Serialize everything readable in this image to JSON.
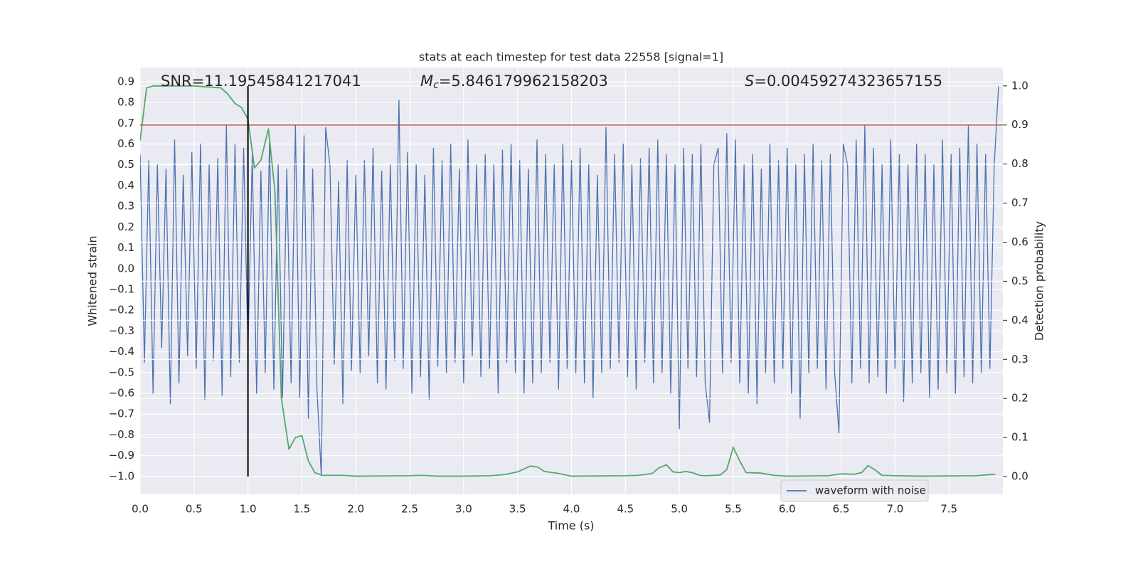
{
  "chart_data": {
    "type": "line",
    "title": "stats at each timestep for test data 22558 [signal=1]",
    "xlabel": "Time (s)",
    "ylabel": "Whitened strain",
    "y2label": "Detection probability",
    "grid": true,
    "legend_loc": "lower right",
    "background": "#eaeaf2",
    "xlim": [
      0,
      8
    ],
    "ylim": [
      -1.086,
      0.968
    ],
    "y2lim": [
      -0.0455,
      1.047
    ],
    "xticks": [
      {
        "value": 0,
        "label": "0.0"
      },
      0.5,
      {
        "value": 1,
        "label": "1.0"
      },
      1.5,
      {
        "value": 2,
        "label": "2.0"
      },
      2.5,
      {
        "value": 3,
        "label": "3.0"
      },
      3.5,
      {
        "value": 4,
        "label": "4.0"
      },
      4.5,
      {
        "value": 5,
        "label": "5.0"
      },
      5.5,
      {
        "value": 6,
        "label": "6.0"
      },
      6.5,
      {
        "value": 7,
        "label": "7.0"
      },
      7.5
    ],
    "yticks": [
      {
        "value": -1,
        "label": "−1.0"
      },
      {
        "value": -0.9,
        "label": "−0.9"
      },
      {
        "value": -0.8,
        "label": "−0.8"
      },
      {
        "value": -0.7,
        "label": "−0.7"
      },
      {
        "value": -0.6,
        "label": "−0.6"
      },
      {
        "value": -0.5,
        "label": "−0.5"
      },
      {
        "value": -0.4,
        "label": "−0.4"
      },
      {
        "value": -0.3,
        "label": "−0.3"
      },
      {
        "value": -0.2,
        "label": "−0.2"
      },
      {
        "value": -0.1,
        "label": "−0.1"
      },
      {
        "value": 0,
        "label": "0.0"
      },
      0.1,
      0.2,
      0.3,
      0.4,
      0.5,
      0.6,
      0.7,
      0.8,
      0.9
    ],
    "y2ticks": [
      {
        "value": 0,
        "label": "0.0"
      },
      0.1,
      0.2,
      0.3,
      0.4,
      0.5,
      0.6,
      0.7,
      0.8,
      0.9,
      {
        "value": 1,
        "label": "1.0"
      }
    ],
    "annotations": [
      {
        "text": "SNR=11.19545841217041"
      },
      {
        "symbol": "M",
        "subscript": "c",
        "text": "=5.846179962158203"
      },
      {
        "symbol": "S",
        "text": "=0.00459274323657155"
      }
    ],
    "hlines": [
      {
        "y": 0.9,
        "axis": "y2",
        "color": "#c44e52"
      }
    ],
    "vlines": [
      {
        "x": 1,
        "ymin": 0,
        "ymax": 1,
        "axis": "y2",
        "color": "#000000"
      }
    ],
    "series": [
      {
        "name": "waveform with noise",
        "color": "#4c72b0",
        "x": [
          0,
          0.04,
          0.08,
          0.12,
          0.16,
          0.2,
          0.24,
          0.28,
          0.32,
          0.36,
          0.4,
          0.44,
          0.48,
          0.52,
          0.56,
          0.6,
          0.64,
          0.68,
          0.72,
          0.76,
          0.8,
          0.84,
          0.88,
          0.92,
          0.96,
          1,
          1.04,
          1.08,
          1.12,
          1.16,
          1.2,
          1.24,
          1.28,
          1.32,
          1.36,
          1.4,
          1.44,
          1.48,
          1.52,
          1.56,
          1.6,
          1.64,
          1.68,
          1.72,
          1.76,
          1.8,
          1.84,
          1.88,
          1.92,
          1.96,
          2,
          2.04,
          2.08,
          2.12,
          2.16,
          2.2,
          2.24,
          2.28,
          2.32,
          2.36,
          2.4,
          2.44,
          2.48,
          2.52,
          2.56,
          2.6,
          2.64,
          2.68,
          2.72,
          2.76,
          2.8,
          2.84,
          2.88,
          2.92,
          2.96,
          3,
          3.04,
          3.08,
          3.12,
          3.16,
          3.2,
          3.24,
          3.28,
          3.32,
          3.36,
          3.4,
          3.44,
          3.48,
          3.52,
          3.56,
          3.6,
          3.64,
          3.68,
          3.72,
          3.76,
          3.8,
          3.84,
          3.88,
          3.92,
          3.96,
          4,
          4.04,
          4.08,
          4.12,
          4.16,
          4.2,
          4.24,
          4.28,
          4.32,
          4.36,
          4.4,
          4.44,
          4.48,
          4.52,
          4.56,
          4.6,
          4.64,
          4.68,
          4.72,
          4.76,
          4.8,
          4.84,
          4.88,
          4.92,
          4.96,
          5,
          5.04,
          5.08,
          5.12,
          5.16,
          5.2,
          5.24,
          5.28,
          5.32,
          5.36,
          5.4,
          5.44,
          5.48,
          5.52,
          5.56,
          5.6,
          5.64,
          5.68,
          5.72,
          5.76,
          5.8,
          5.84,
          5.88,
          5.92,
          5.96,
          6,
          6.04,
          6.08,
          6.12,
          6.16,
          6.2,
          6.24,
          6.28,
          6.32,
          6.36,
          6.4,
          6.44,
          6.48,
          6.52,
          6.56,
          6.6,
          6.64,
          6.68,
          6.72,
          6.76,
          6.8,
          6.84,
          6.88,
          6.92,
          6.96,
          7,
          7.04,
          7.08,
          7.12,
          7.16,
          7.2,
          7.24,
          7.28,
          7.32,
          7.36,
          7.4,
          7.44,
          7.48,
          7.52,
          7.56,
          7.6,
          7.64,
          7.68,
          7.72,
          7.76,
          7.8,
          7.84,
          7.88,
          7.92,
          7.96
        ],
        "values": [
          0.55,
          -0.45,
          0.52,
          -0.6,
          0.5,
          -0.38,
          0.48,
          -0.65,
          0.62,
          -0.55,
          0.45,
          -0.42,
          0.56,
          -0.48,
          0.6,
          -0.63,
          0.5,
          -0.44,
          0.53,
          -0.61,
          0.69,
          -0.52,
          0.6,
          -0.45,
          0.58,
          -0.39,
          0.55,
          -0.6,
          0.47,
          -0.5,
          0.62,
          -0.58,
          0.5,
          -0.62,
          0.48,
          -0.55,
          0.69,
          -0.62,
          0.64,
          -0.72,
          0.48,
          -0.58,
          -1.0,
          0.68,
          0.5,
          -0.46,
          0.42,
          -0.65,
          0.52,
          -0.49,
          0.45,
          -0.5,
          0.52,
          -0.42,
          0.58,
          -0.55,
          0.47,
          -0.58,
          0.5,
          -0.44,
          0.81,
          -0.48,
          0.56,
          -0.6,
          0.5,
          -0.52,
          0.45,
          -0.63,
          0.58,
          -0.47,
          0.52,
          -0.5,
          0.6,
          -0.45,
          0.48,
          -0.55,
          0.62,
          -0.42,
          0.5,
          -0.52,
          0.55,
          -0.48,
          0.5,
          -0.6,
          0.57,
          -0.45,
          0.6,
          -0.5,
          0.52,
          -0.6,
          0.48,
          -0.55,
          0.62,
          -0.5,
          0.55,
          -0.45,
          0.5,
          -0.58,
          0.6,
          -0.48,
          0.52,
          -0.5,
          0.58,
          -0.55,
          0.5,
          -0.62,
          0.45,
          -0.5,
          0.68,
          -0.48,
          0.55,
          -0.45,
          0.6,
          -0.52,
          0.5,
          -0.58,
          0.53,
          -0.45,
          0.58,
          -0.55,
          0.62,
          -0.5,
          0.55,
          -0.6,
          0.5,
          -0.77,
          0.58,
          -0.48,
          0.55,
          -0.52,
          0.6,
          -0.55,
          -0.74,
          0.5,
          0.58,
          -0.5,
          0.65,
          -0.45,
          0.62,
          -0.55,
          0.5,
          -0.6,
          0.55,
          -0.65,
          0.48,
          -0.5,
          0.6,
          -0.55,
          0.52,
          -0.48,
          0.58,
          -0.6,
          0.5,
          -0.72,
          0.55,
          -0.5,
          0.6,
          -0.48,
          0.52,
          -0.58,
          0.55,
          -0.5,
          -0.79,
          0.6,
          0.5,
          -0.55,
          0.62,
          -0.48,
          0.69,
          -0.55,
          0.58,
          -0.52,
          0.5,
          -0.6,
          0.62,
          -0.48,
          0.55,
          -0.64,
          0.5,
          -0.55,
          0.6,
          -0.5,
          0.55,
          -0.62,
          0.5,
          -0.58,
          0.62,
          -0.5,
          0.55,
          -0.6,
          0.58,
          -0.52,
          0.69,
          -0.55,
          0.6,
          -0.5,
          0.55,
          -0.48,
          0.5,
          0.88
        ]
      },
      {
        "color": "#55a868",
        "axis": "y2",
        "x": [
          0,
          0.06,
          0.12,
          0.25,
          0.5,
          0.75,
          0.81,
          0.88,
          0.94,
          1,
          1.06,
          1.12,
          1.19,
          1.25,
          1.31,
          1.38,
          1.44,
          1.5,
          1.56,
          1.62,
          1.69,
          1.75,
          1.88,
          2,
          2.5,
          2.62,
          2.75,
          3,
          3.25,
          3.38,
          3.5,
          3.62,
          3.69,
          3.75,
          3.88,
          4,
          4.5,
          4.62,
          4.75,
          4.81,
          4.88,
          4.94,
          5,
          5.06,
          5.12,
          5.19,
          5.25,
          5.38,
          5.44,
          5.5,
          5.56,
          5.62,
          5.75,
          5.88,
          6,
          6.38,
          6.5,
          6.62,
          6.69,
          6.75,
          6.81,
          6.88,
          7,
          7.25,
          7.75,
          7.93
        ],
        "values": [
          0.86,
          0.995,
          1.0,
          1.0,
          1.0,
          0.995,
          0.98,
          0.955,
          0.945,
          0.915,
          0.79,
          0.81,
          0.89,
          0.73,
          0.2,
          0.07,
          0.1,
          0.105,
          0.04,
          0.01,
          0.003,
          0.003,
          0.003,
          0.001,
          0.002,
          0.003,
          0.001,
          0.001,
          0.002,
          0.005,
          0.012,
          0.027,
          0.024,
          0.013,
          0.008,
          0.001,
          0.002,
          0.003,
          0.008,
          0.022,
          0.03,
          0.012,
          0.01,
          0.013,
          0.01,
          0.003,
          0.002,
          0.004,
          0.018,
          0.075,
          0.04,
          0.01,
          0.009,
          0.003,
          0.001,
          0.002,
          0.007,
          0.006,
          0.01,
          0.028,
          0.018,
          0.003,
          0.002,
          0.001,
          0.002,
          0.006
        ]
      }
    ]
  }
}
